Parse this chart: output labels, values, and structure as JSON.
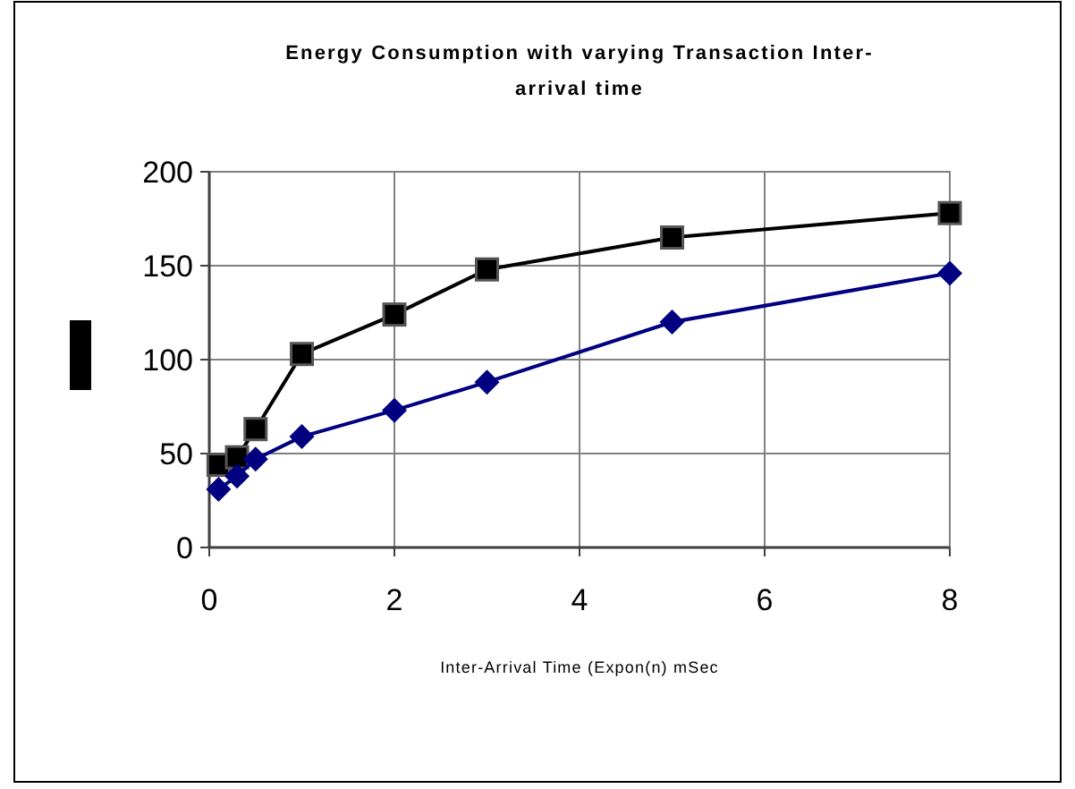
{
  "chart_data": {
    "type": "line",
    "title": "Energy Consumption with varying Transaction Inter-arrival time",
    "xlabel": "Inter-Arrival Time (Expon(n) mSec",
    "x": [
      0.1,
      0.3,
      0.5,
      1,
      2,
      3,
      5,
      8
    ],
    "series": [
      {
        "color": "#000000",
        "marker": "square",
        "values": [
          44,
          48,
          63,
          103,
          124,
          148,
          165,
          178
        ]
      },
      {
        "color": "#000080",
        "marker": "diamond",
        "values": [
          31,
          38,
          47,
          59,
          73,
          88,
          120,
          146
        ]
      }
    ],
    "xlim": [
      0,
      8
    ],
    "xticks": [
      0,
      2,
      4,
      6,
      8
    ],
    "ylim": [
      0,
      200
    ],
    "yticks": [
      0,
      50,
      100,
      150,
      200
    ],
    "grid": true
  }
}
